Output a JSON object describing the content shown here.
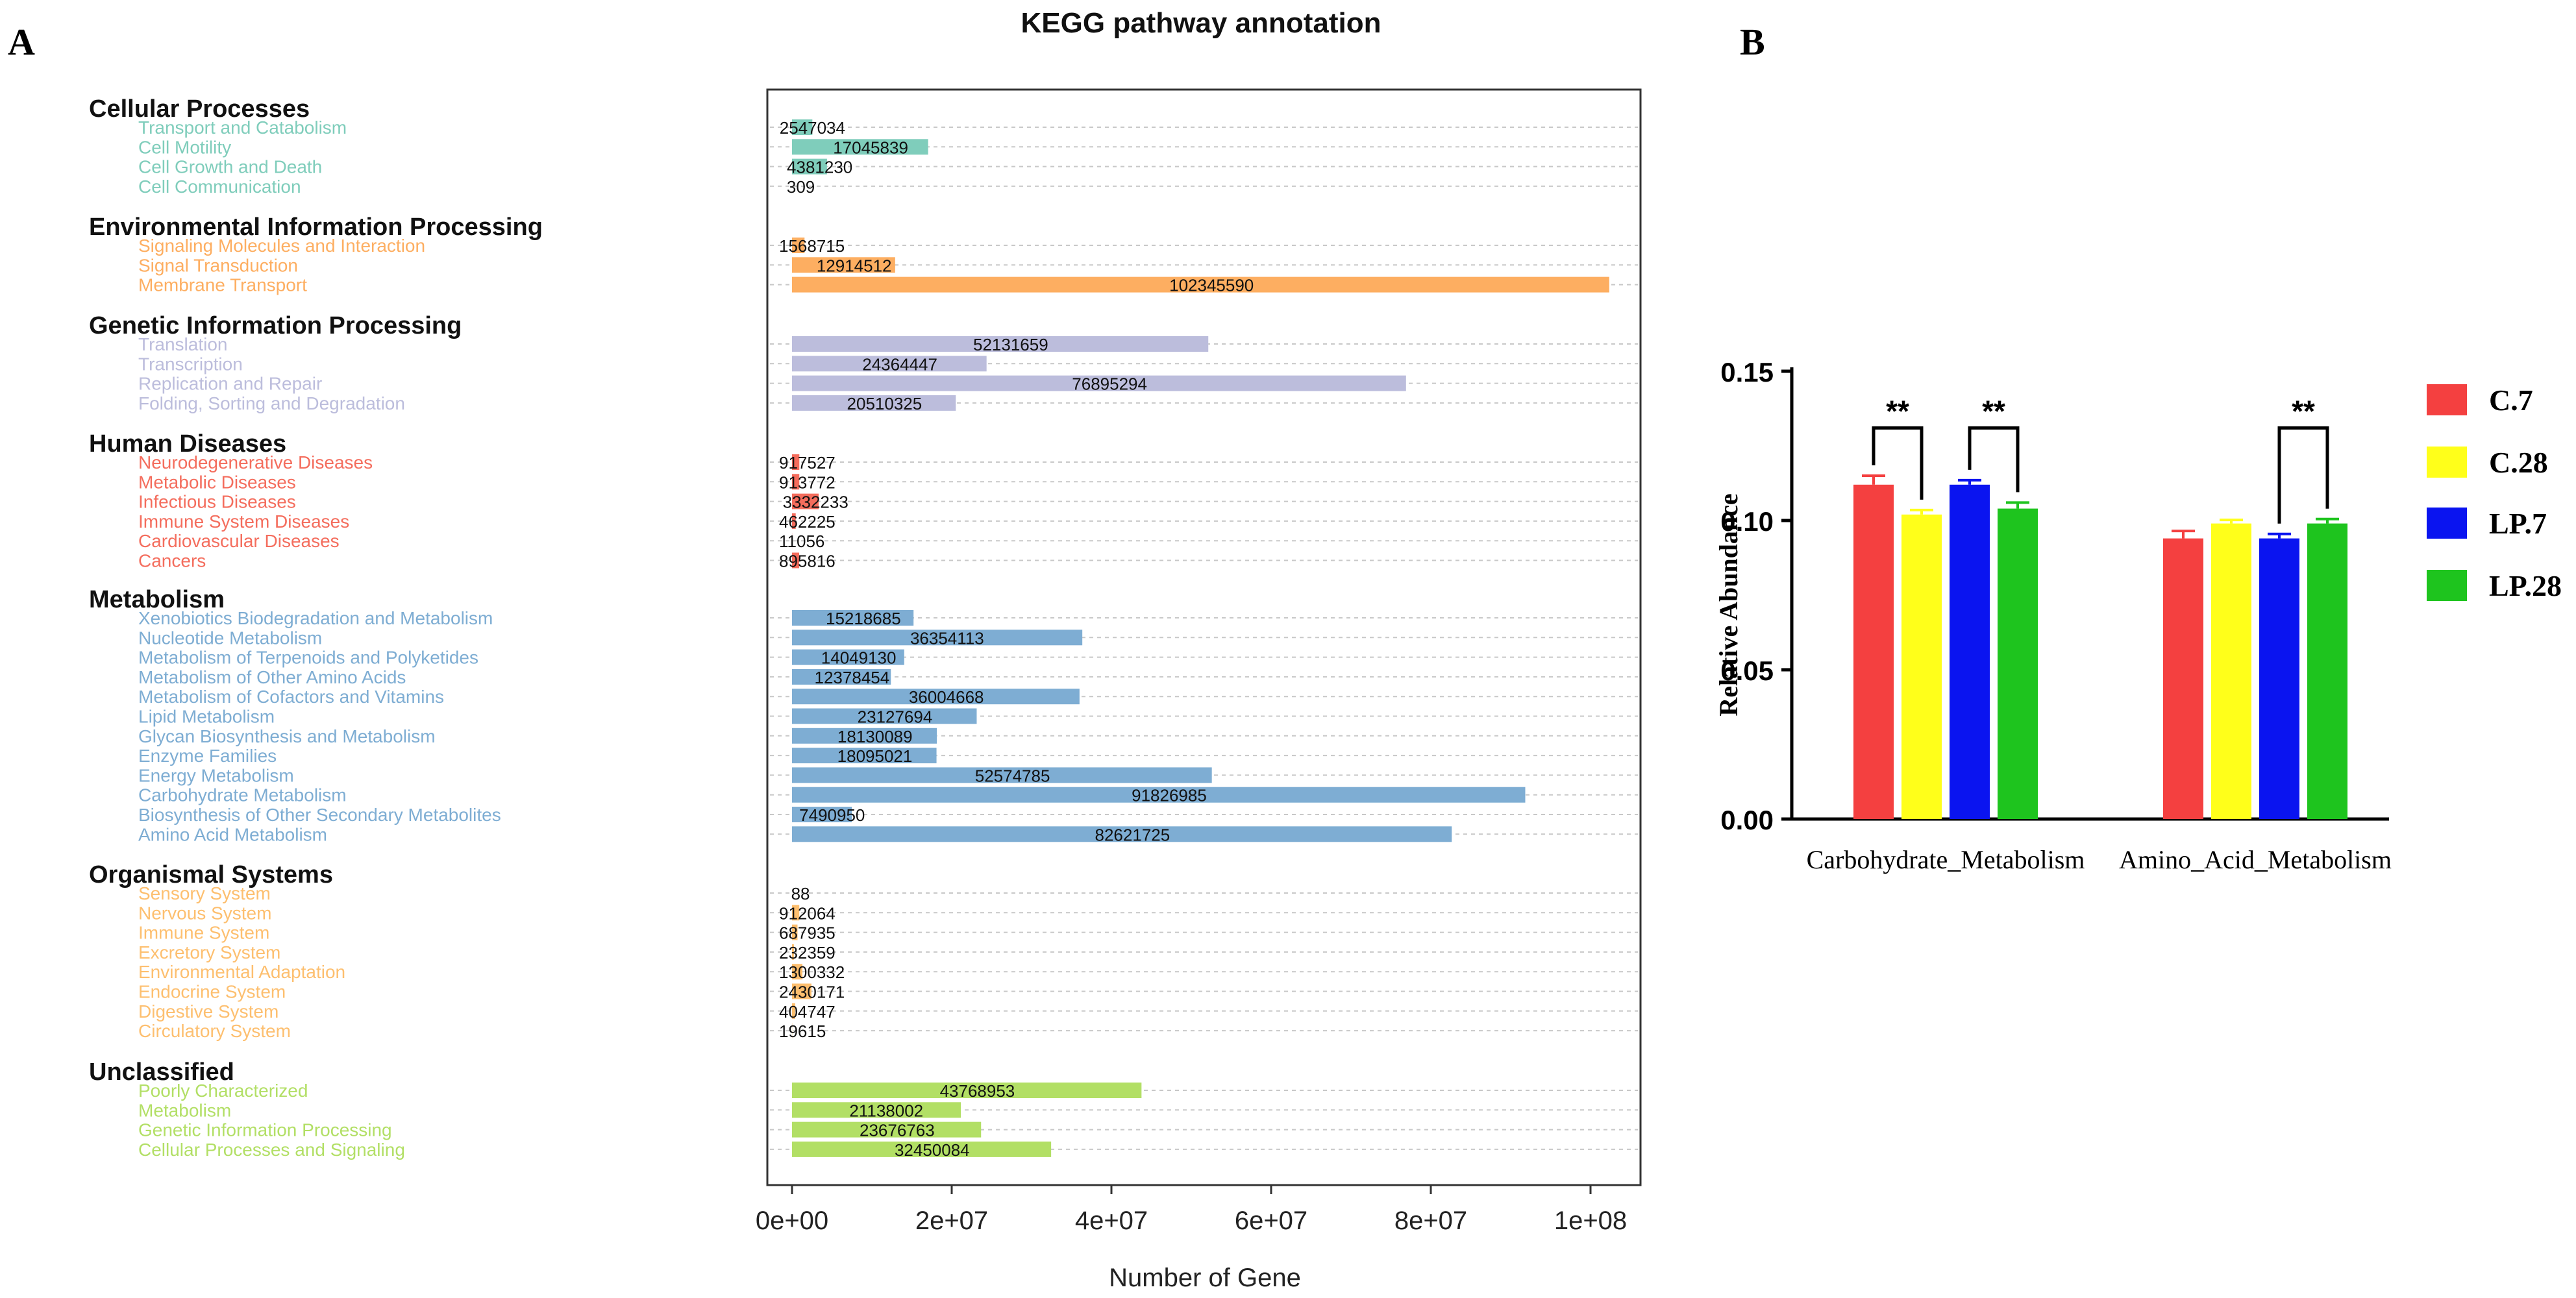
{
  "panel_labels": {
    "a": "A",
    "b": "B"
  },
  "chart_data": [
    {
      "type": "bar",
      "orientation": "horizontal",
      "title": "KEGG pathway annotation",
      "xlabel": "Number of Gene",
      "xlim": [
        0,
        110000000
      ],
      "xticks": [
        0,
        20000000,
        40000000,
        60000000,
        80000000,
        100000000
      ],
      "xtick_labels": [
        "0e+00",
        "2e+07",
        "4e+07",
        "6e+07",
        "8e+07",
        "1e+08"
      ],
      "groups": [
        {
          "name": "Cellular Processes",
          "color": "#7fcdbb",
          "items": [
            {
              "label": "Transport and Catabolism",
              "value": 2547034
            },
            {
              "label": "Cell Motility",
              "value": 17045839
            },
            {
              "label": "Cell Growth and Death",
              "value": 4381230
            },
            {
              "label": "Cell Communication",
              "value": 309
            }
          ]
        },
        {
          "name": "Environmental Information Processing",
          "color": "#fdae61",
          "items": [
            {
              "label": "Signaling Molecules and Interaction",
              "value": 1568715
            },
            {
              "label": "Signal Transduction",
              "value": 12914512
            },
            {
              "label": "Membrane Transport",
              "value": 102345590
            }
          ]
        },
        {
          "name": "Genetic Information Processing",
          "color": "#bcbddc",
          "items": [
            {
              "label": "Translation",
              "value": 52131659
            },
            {
              "label": "Transcription",
              "value": 24364447
            },
            {
              "label": "Replication and Repair",
              "value": 76895294
            },
            {
              "label": "Folding, Sorting and Degradation",
              "value": 20510325
            }
          ]
        },
        {
          "name": "Human Diseases",
          "color": "#f46d5d",
          "items": [
            {
              "label": "Neurodegenerative Diseases",
              "value": 917527
            },
            {
              "label": "Metabolic Diseases",
              "value": 913772
            },
            {
              "label": "Infectious Diseases",
              "value": 3332233
            },
            {
              "label": "Immune System Diseases",
              "value": 462225
            },
            {
              "label": "Cardiovascular Diseases",
              "value": 11056
            },
            {
              "label": "Cancers",
              "value": 895816
            }
          ]
        },
        {
          "name": "Metabolism",
          "color": "#7eadd3",
          "items": [
            {
              "label": "Xenobiotics Biodegradation and Metabolism",
              "value": 15218685
            },
            {
              "label": "Nucleotide Metabolism",
              "value": 36354113
            },
            {
              "label": "Metabolism of Terpenoids and Polyketides",
              "value": 14049130
            },
            {
              "label": "Metabolism of Other Amino Acids",
              "value": 12378454
            },
            {
              "label": "Metabolism of Cofactors and Vitamins",
              "value": 36004668
            },
            {
              "label": "Lipid Metabolism",
              "value": 23127694
            },
            {
              "label": "Glycan Biosynthesis and Metabolism",
              "value": 18130089
            },
            {
              "label": "Enzyme Families",
              "value": 18095021
            },
            {
              "label": "Energy Metabolism",
              "value": 52574785
            },
            {
              "label": "Carbohydrate Metabolism",
              "value": 91826985
            },
            {
              "label": "Biosynthesis of Other Secondary Metabolites",
              "value": 7490950
            },
            {
              "label": "Amino Acid Metabolism",
              "value": 82621725
            }
          ]
        },
        {
          "name": "Organismal Systems",
          "color": "#fdbf6f",
          "items": [
            {
              "label": "Sensory System",
              "value": 88
            },
            {
              "label": "Nervous System",
              "value": 912064
            },
            {
              "label": "Immune System",
              "value": 687935
            },
            {
              "label": "Excretory System",
              "value": 232359
            },
            {
              "label": "Environmental Adaptation",
              "value": 1300332
            },
            {
              "label": "Endocrine System",
              "value": 2430171
            },
            {
              "label": "Digestive System",
              "value": 404747
            },
            {
              "label": "Circulatory System",
              "value": 19615
            }
          ]
        },
        {
          "name": "Unclassified",
          "color": "#b2df65",
          "items": [
            {
              "label": "Poorly Characterized",
              "value": 43768953
            },
            {
              "label": "Metabolism",
              "value": 21138002
            },
            {
              "label": "Genetic Information Processing",
              "value": 23676763
            },
            {
              "label": "Cellular Processes and Signaling",
              "value": 32450084
            }
          ]
        }
      ]
    },
    {
      "type": "bar",
      "orientation": "vertical",
      "title": "",
      "xlabel": "",
      "ylabel": "Relative  Abundance",
      "ylim": [
        0,
        0.15
      ],
      "yticks": [
        0,
        0.05,
        0.1,
        0.15
      ],
      "ytick_labels": [
        "0.00",
        "0.05",
        "0.10",
        "0.15"
      ],
      "categories": [
        "Carbohydrate_Metabolism",
        "Amino_Acid_Metabolism"
      ],
      "series": [
        {
          "name": "C.7",
          "color": "#f44040",
          "values": [
            0.112,
            0.094
          ],
          "errors": [
            0.003,
            0.0025
          ]
        },
        {
          "name": "C.28",
          "color": "#ffff1a",
          "values": [
            0.102,
            0.099
          ],
          "errors": [
            0.0015,
            0.0012
          ]
        },
        {
          "name": "LP.7",
          "color": "#0a14f0",
          "values": [
            0.112,
            0.094
          ],
          "errors": [
            0.0015,
            0.0015
          ]
        },
        {
          "name": "LP.28",
          "color": "#1ec41e",
          "values": [
            0.104,
            0.099
          ],
          "errors": [
            0.002,
            0.0015
          ]
        }
      ],
      "significance": [
        {
          "label": "**",
          "category": 0,
          "from": 0,
          "to": 1
        },
        {
          "label": "**",
          "category": 0,
          "from": 2,
          "to": 3
        },
        {
          "label": "**",
          "category": 1,
          "from": 2,
          "to": 3
        }
      ],
      "legend_position": "right"
    }
  ]
}
